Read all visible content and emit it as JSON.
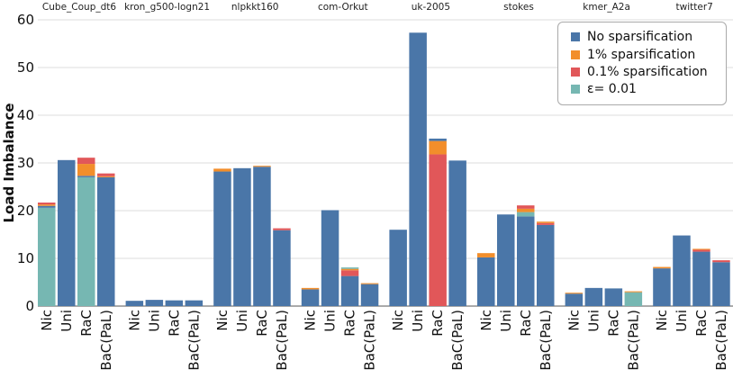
{
  "chart_data": {
    "type": "bar",
    "stacked": true,
    "ylabel": "Load Imbalance",
    "ylim": [
      0,
      60
    ],
    "yticks": [
      0,
      10,
      20,
      30,
      40,
      50,
      60
    ],
    "grid": true,
    "legend_position": "top-right",
    "categories": [
      "Nic",
      "Uni",
      "RaC",
      "BaC(PaL)"
    ],
    "series": [
      {
        "name": "No sparsification",
        "color": "#4a76a8"
      },
      {
        "name": "1% sparsification",
        "color": "#f28e2b"
      },
      {
        "name": "0.1% sparsification",
        "color": "#e15759"
      },
      {
        "name": "ε= 0.01",
        "color": "#76b7b2"
      }
    ],
    "panels": [
      {
        "title": "Cube_Coup_dt6",
        "bars": [
          [
            {
              "s": 3,
              "v": 20.6
            },
            {
              "s": 0,
              "v": 0.4
            },
            {
              "s": 1,
              "v": 0.3
            },
            {
              "s": 2,
              "v": 0.4
            }
          ],
          [
            {
              "s": 0,
              "v": 30.6
            }
          ],
          [
            {
              "s": 3,
              "v": 27.0
            },
            {
              "s": 0,
              "v": 0.3
            },
            {
              "s": 1,
              "v": 2.5
            },
            {
              "s": 2,
              "v": 1.3
            }
          ],
          [
            {
              "s": 0,
              "v": 27.0
            },
            {
              "s": 1,
              "v": 0.2
            },
            {
              "s": 2,
              "v": 0.6
            }
          ]
        ]
      },
      {
        "title": "kron_g500-logn21",
        "bars": [
          [
            {
              "s": 0,
              "v": 1.1
            }
          ],
          [
            {
              "s": 0,
              "v": 1.3
            }
          ],
          [
            {
              "s": 0,
              "v": 1.2
            }
          ],
          [
            {
              "s": 0,
              "v": 1.2
            }
          ]
        ]
      },
      {
        "title": "nlpkkt160",
        "bars": [
          [
            {
              "s": 0,
              "v": 28.2
            },
            {
              "s": 1,
              "v": 0.6
            }
          ],
          [
            {
              "s": 0,
              "v": 28.9
            }
          ],
          [
            {
              "s": 0,
              "v": 29.2
            },
            {
              "s": 1,
              "v": 0.2
            }
          ],
          [
            {
              "s": 0,
              "v": 15.9
            },
            {
              "s": 2,
              "v": 0.4
            }
          ]
        ]
      },
      {
        "title": "com-Orkut",
        "bars": [
          [
            {
              "s": 0,
              "v": 3.5
            },
            {
              "s": 1,
              "v": 0.3
            }
          ],
          [
            {
              "s": 0,
              "v": 20.1
            }
          ],
          [
            {
              "s": 0,
              "v": 6.3
            },
            {
              "s": 2,
              "v": 1.2
            },
            {
              "s": 1,
              "v": 0.3
            },
            {
              "s": 3,
              "v": 0.3
            }
          ],
          [
            {
              "s": 0,
              "v": 4.6
            },
            {
              "s": 1,
              "v": 0.2
            }
          ]
        ]
      },
      {
        "title": "uk-2005",
        "bars": [
          [
            {
              "s": 0,
              "v": 16.0
            }
          ],
          [
            {
              "s": 0,
              "v": 57.3
            }
          ],
          [
            {
              "s": 2,
              "v": 31.8
            },
            {
              "s": 1,
              "v": 2.8
            },
            {
              "s": 0,
              "v": 0.5
            }
          ],
          [
            {
              "s": 0,
              "v": 30.5
            }
          ]
        ]
      },
      {
        "title": "stokes",
        "bars": [
          [
            {
              "s": 0,
              "v": 10.2
            },
            {
              "s": 1,
              "v": 0.9
            }
          ],
          [
            {
              "s": 0,
              "v": 19.2
            }
          ],
          [
            {
              "s": 0,
              "v": 18.8
            },
            {
              "s": 3,
              "v": 0.9
            },
            {
              "s": 1,
              "v": 0.7
            },
            {
              "s": 2,
              "v": 0.7
            }
          ],
          [
            {
              "s": 0,
              "v": 17.0
            },
            {
              "s": 2,
              "v": 0.4
            },
            {
              "s": 1,
              "v": 0.3
            }
          ]
        ]
      },
      {
        "title": "kmer_A2a",
        "bars": [
          [
            {
              "s": 0,
              "v": 2.6
            },
            {
              "s": 1,
              "v": 0.2
            }
          ],
          [
            {
              "s": 0,
              "v": 3.8
            }
          ],
          [
            {
              "s": 0,
              "v": 3.7
            }
          ],
          [
            {
              "s": 3,
              "v": 2.9
            },
            {
              "s": 1,
              "v": 0.2
            }
          ]
        ]
      },
      {
        "title": "twitter7",
        "bars": [
          [
            {
              "s": 0,
              "v": 7.9
            },
            {
              "s": 1,
              "v": 0.3
            }
          ],
          [
            {
              "s": 0,
              "v": 14.8
            }
          ],
          [
            {
              "s": 0,
              "v": 11.4
            },
            {
              "s": 2,
              "v": 0.4
            },
            {
              "s": 1,
              "v": 0.2
            }
          ],
          [
            {
              "s": 0,
              "v": 9.2
            },
            {
              "s": 2,
              "v": 0.4
            }
          ]
        ]
      }
    ]
  }
}
